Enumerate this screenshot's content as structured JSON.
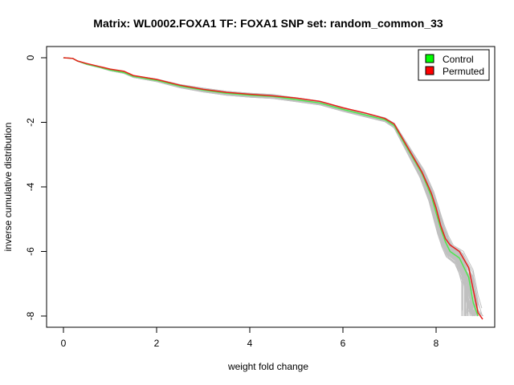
{
  "chart_data": {
    "type": "line",
    "title": "Matrix: WL0002.FOXA1 TF: FOXA1 SNP set: random_common_33",
    "xlabel": "weight fold change",
    "ylabel": "inverse cumulative distribution",
    "xlim": [
      0,
      9
    ],
    "ylim": [
      -8.2,
      0.2
    ],
    "xticks": [
      0,
      2,
      4,
      6,
      8
    ],
    "yticks": [
      0,
      -2,
      -4,
      -6,
      -8
    ],
    "legend_position": "top-right",
    "series": [
      {
        "name": "Control",
        "color": "#4ee84e",
        "x": [
          0,
          0.2,
          0.3,
          0.5,
          0.8,
          1.0,
          1.3,
          1.5,
          2.0,
          2.5,
          3.0,
          3.5,
          4.0,
          4.5,
          5.0,
          5.5,
          6.0,
          6.5,
          6.9,
          7.1,
          7.3,
          7.5,
          7.7,
          7.9,
          8.0,
          8.1,
          8.2,
          8.3,
          8.5,
          8.7,
          8.8,
          8.9
        ],
        "y": [
          0,
          -0.02,
          -0.1,
          -0.2,
          -0.3,
          -0.38,
          -0.46,
          -0.58,
          -0.7,
          -0.88,
          -1.0,
          -1.1,
          -1.16,
          -1.2,
          -1.3,
          -1.4,
          -1.6,
          -1.78,
          -1.92,
          -2.1,
          -2.6,
          -3.1,
          -3.6,
          -4.3,
          -4.8,
          -5.3,
          -5.7,
          -6.0,
          -6.2,
          -6.8,
          -7.6,
          -8.0
        ]
      },
      {
        "name": "Permuted",
        "color": "#e8201c",
        "x": [
          0,
          0.2,
          0.3,
          0.5,
          0.8,
          1.0,
          1.3,
          1.5,
          2.0,
          2.5,
          3.0,
          3.5,
          4.0,
          4.5,
          5.0,
          5.5,
          6.0,
          6.5,
          6.9,
          7.1,
          7.3,
          7.5,
          7.7,
          7.9,
          8.0,
          8.1,
          8.2,
          8.3,
          8.5,
          8.7,
          8.8,
          8.9,
          9.0
        ],
        "y": [
          0,
          -0.02,
          -0.1,
          -0.18,
          -0.28,
          -0.35,
          -0.42,
          -0.55,
          -0.67,
          -0.85,
          -0.98,
          -1.07,
          -1.13,
          -1.18,
          -1.25,
          -1.35,
          -1.55,
          -1.72,
          -1.88,
          -2.05,
          -2.55,
          -3.05,
          -3.55,
          -4.2,
          -4.65,
          -5.2,
          -5.6,
          -5.8,
          -6.0,
          -6.5,
          -7.2,
          -7.9,
          -8.1
        ]
      }
    ]
  },
  "background_traces": 60,
  "background_color": "#c0c0c0"
}
